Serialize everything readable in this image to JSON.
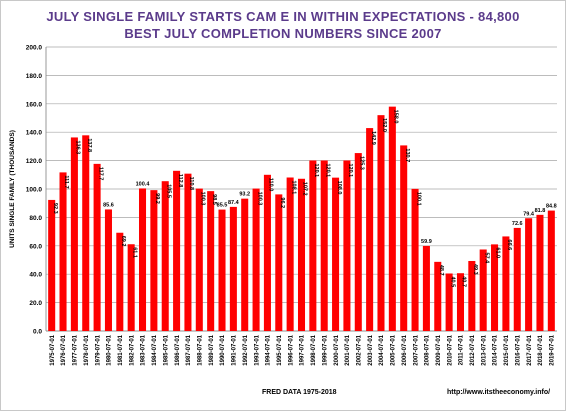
{
  "chart_data": {
    "type": "bar",
    "title": "JULY SINGLE FAMILY STARTS CAM E IN WITHIN EXPECTATIONS - 84,800",
    "subtitle": "BEST JULY COMPLETION NUMBERS SINCE 2007",
    "xlabel": "",
    "ylabel": "UNITS SINGLE FAMILY (THOUSANDS)",
    "ylim": [
      0,
      200
    ],
    "yticks": [
      "0.0",
      "20.0",
      "40.0",
      "60.0",
      "80.0",
      "100.0",
      "120.0",
      "140.0",
      "160.0",
      "180.0",
      "200.0"
    ],
    "grid": true,
    "color": "#ff0000",
    "categories": [
      "1975-07-01",
      "1976-07-01",
      "1977-07-01",
      "1978-07-01",
      "1979-07-01",
      "1980-07-01",
      "1981-07-01",
      "1982-07-01",
      "1983-07-01",
      "1984-07-01",
      "1985-07-01",
      "1986-07-01",
      "1987-07-01",
      "1988-07-01",
      "1989-07-01",
      "1990-07-01",
      "1991-07-01",
      "1992-07-01",
      "1993-07-01",
      "1994-07-01",
      "1995-07-01",
      "1996-07-01",
      "1997-07-01",
      "1998-07-01",
      "1999-07-01",
      "2000-07-01",
      "2001-07-01",
      "2002-07-01",
      "2003-07-01",
      "2004-07-01",
      "2005-07-01",
      "2006-07-01",
      "2007-07-01",
      "2008-07-01",
      "2009-07-01",
      "2010-07-01",
      "2011-07-01",
      "2012-07-01",
      "2013-07-01",
      "2014-07-01",
      "2015-07-01",
      "2016-07-01",
      "2017-07-01",
      "2018-07-01",
      "2019-07-01"
    ],
    "values": [
      92.3,
      111.7,
      136.3,
      137.8,
      117.7,
      85.6,
      69.2,
      61.1,
      100.4,
      99.2,
      105.5,
      112.8,
      110.8,
      100.3,
      98.5,
      85.5,
      87.4,
      93.2,
      100.3,
      110.0,
      96.2,
      108.1,
      107.2,
      120.1,
      120.1,
      108.0,
      120.1,
      125.3,
      142.9,
      152.0,
      158.0,
      130.7,
      100.1,
      59.9,
      48.7,
      40.5,
      40.7,
      49.3,
      57.4,
      61.0,
      66.6,
      72.6,
      79.4,
      81.8,
      84.8
    ],
    "labels": [
      "92.3",
      "111.7",
      "136.3",
      "137.8",
      "117.7",
      "85.6",
      "69.2",
      "61.1",
      "100.4",
      "99.2",
      "105.5",
      "112.8",
      "110.8",
      "100.3",
      "98.5",
      "85.5",
      "87.4",
      "93.2",
      "100.3",
      "110.0",
      "96.2",
      "108.1",
      "107.2",
      "120.1",
      "120.1",
      "108.0",
      "120.1",
      "125.3",
      "142.9",
      "152.0",
      "158.0",
      "130.7",
      "100.1",
      "59.9",
      "48.7",
      "40.5",
      "40.7",
      "49.3",
      "57.4",
      "61.0",
      "66.6",
      "72.6",
      "79.4",
      "81.8",
      "84.8"
    ],
    "label_inside": [
      true,
      true,
      true,
      true,
      true,
      false,
      true,
      true,
      false,
      true,
      true,
      true,
      true,
      true,
      true,
      false,
      false,
      false,
      true,
      true,
      true,
      true,
      true,
      true,
      true,
      true,
      true,
      true,
      true,
      true,
      true,
      true,
      true,
      false,
      true,
      true,
      true,
      true,
      true,
      true,
      true,
      false,
      false,
      false,
      false
    ]
  },
  "footer": {
    "source": "FRED DATA 1975-2018",
    "site": "http://www.itstheeconomy.info/"
  }
}
